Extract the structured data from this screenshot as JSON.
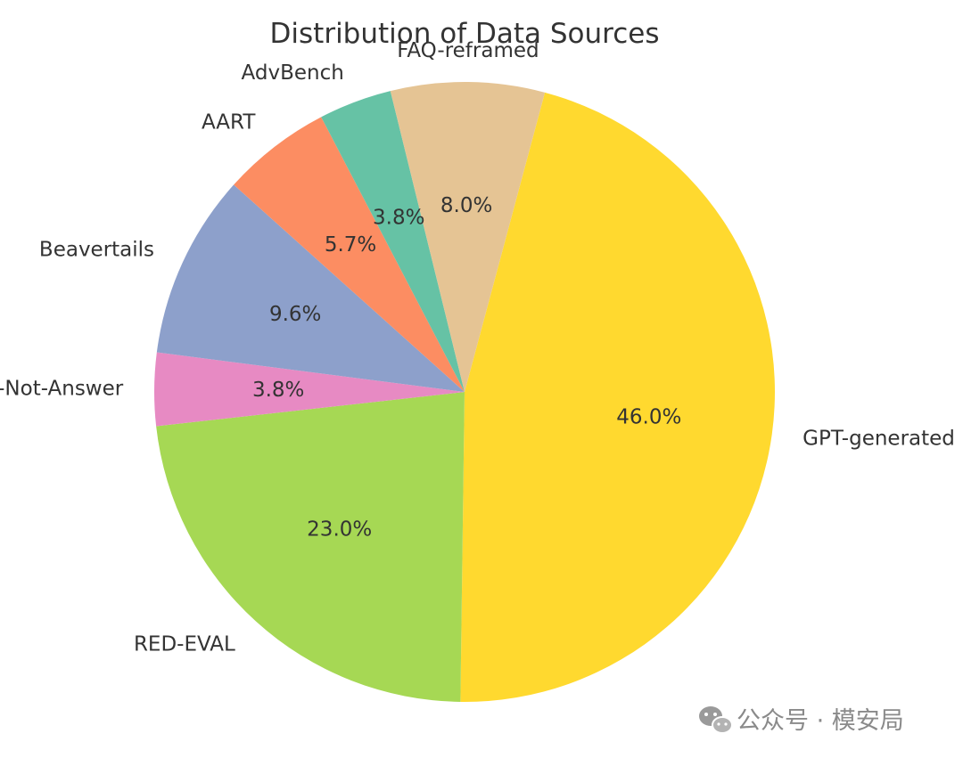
{
  "chart_data": {
    "type": "pie",
    "title": "Distribution of Data Sources",
    "categories": [
      "GPT-generated",
      "RED-EVAL",
      "Do-Not-Answer",
      "Beavertails",
      "AART",
      "AdvBench",
      "FAQ-reframed"
    ],
    "values": [
      46.0,
      23.0,
      3.8,
      9.6,
      5.7,
      3.8,
      8.0
    ],
    "value_labels": [
      "46.0%",
      "23.0%",
      "3.8%",
      "9.6%",
      "5.7%",
      "3.8%",
      "8.0%"
    ],
    "colors": [
      "#ffd92f",
      "#a6d854",
      "#e78ac3",
      "#8da0cb",
      "#fc8d62",
      "#66c2a5",
      "#e5c494"
    ],
    "start_angle_deg": 75,
    "direction": "clockwise",
    "legend": "none"
  },
  "watermark": {
    "text": "公众号 · 模安局",
    "icon": "wechat-icon"
  }
}
